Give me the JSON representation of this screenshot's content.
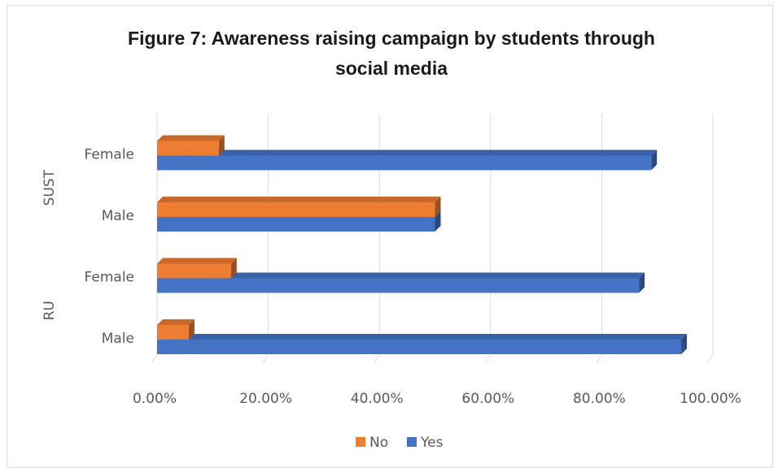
{
  "chart_data": {
    "type": "bar",
    "orientation": "horizontal",
    "style": "3d",
    "title_lines": [
      "Figure 7: Awareness raising campaign by students through",
      "social media"
    ],
    "groups": [
      {
        "name": "RU",
        "categories": [
          "Male",
          "Female"
        ]
      },
      {
        "name": "SUST",
        "categories": [
          "Male",
          "Female"
        ]
      }
    ],
    "series": [
      {
        "name": "No",
        "color": "#ED7D31",
        "values": [
          0.057,
          0.133,
          0.5,
          0.111
        ]
      },
      {
        "name": "Yes",
        "color": "#4472C4",
        "values": [
          0.943,
          0.867,
          0.5,
          0.889
        ]
      }
    ],
    "xlim": [
      0,
      1
    ],
    "xticks": [
      "0.00%",
      "20.00%",
      "40.00%",
      "60.00%",
      "80.00%",
      "100.00%"
    ],
    "grid": true,
    "legend": "bottom"
  }
}
